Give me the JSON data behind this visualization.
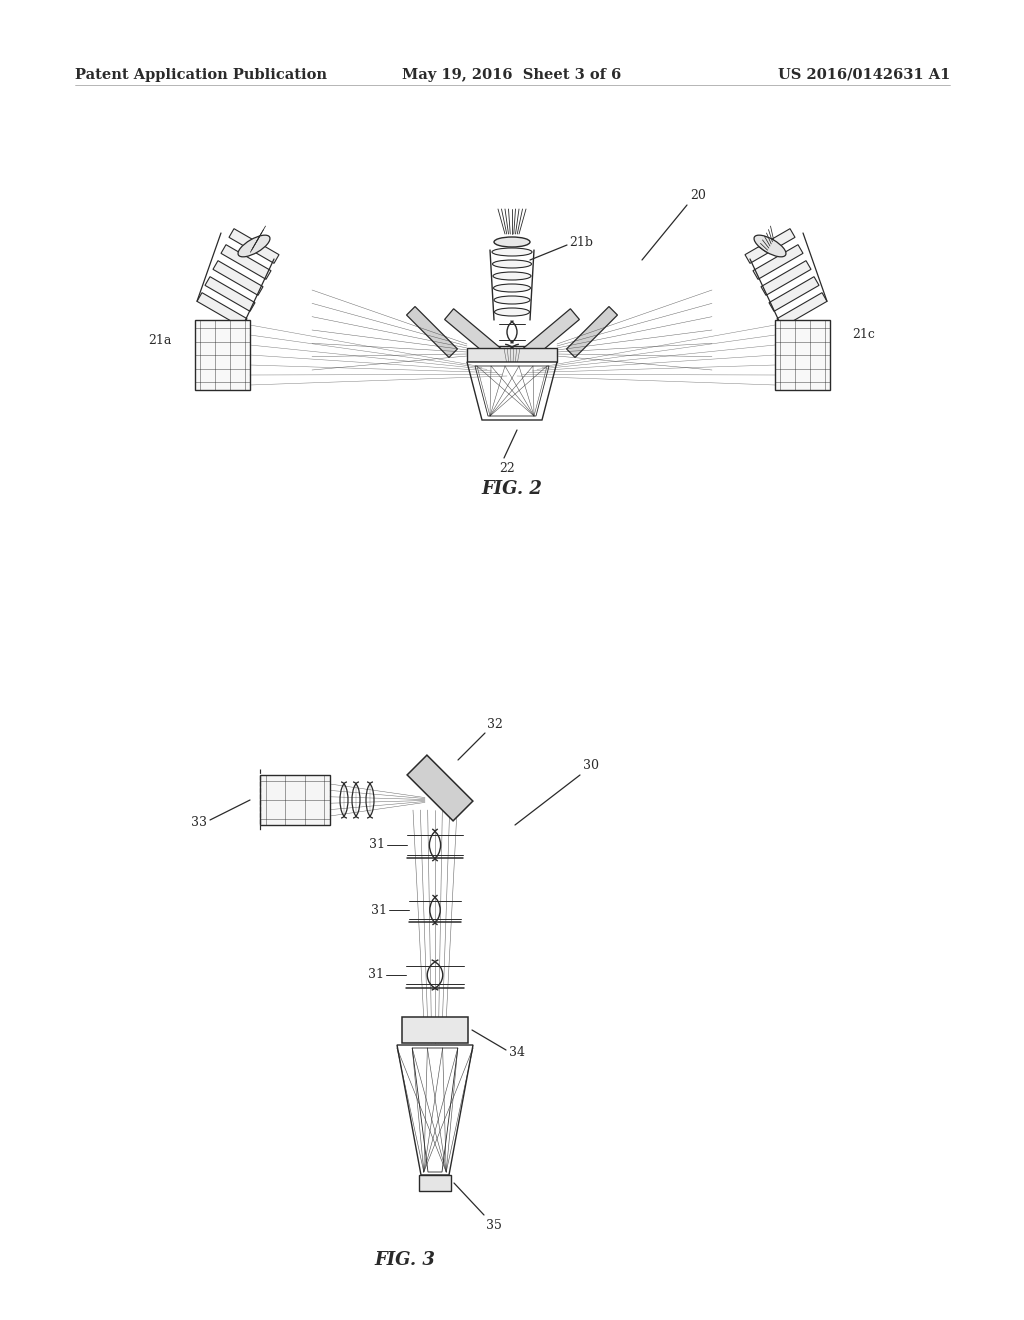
{
  "background_color": "#ffffff",
  "line_color": "#2a2a2a",
  "line_width": 0.9,
  "fig_width": 10.24,
  "fig_height": 13.2,
  "header": {
    "left": "Patent Application Publication",
    "center": "May 19, 2016  Sheet 3 of 6",
    "right": "US 2016/0142631 A1",
    "fontsize": 10.5
  }
}
